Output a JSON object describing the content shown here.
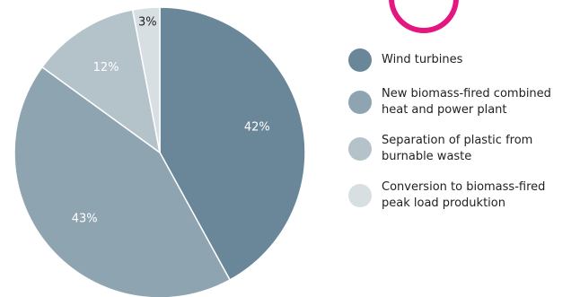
{
  "chart_data": {
    "type": "pie",
    "title": "",
    "slices": [
      {
        "label": "Wind turbines",
        "value": 42,
        "value_label": "42%",
        "color": "#6a8799",
        "label_color": "#ffffff"
      },
      {
        "label": "New biomass-fired combined\nheat and power plant",
        "value": 43,
        "value_label": "43%",
        "color": "#8ea4b0",
        "label_color": "#ffffff"
      },
      {
        "label": "Separation of plastic from\nburnable waste",
        "value": 12,
        "value_label": "12%",
        "color": "#b4c2ca",
        "label_color": "#ffffff"
      },
      {
        "label": "Conversion to biomass-fired\npeak load produktion",
        "value": 3,
        "value_label": "3%",
        "color": "#d8dfe3",
        "label_color": "#222222"
      }
    ],
    "start_angle_deg": 0,
    "direction": "clockwise",
    "legend_position": "right"
  },
  "decoration": {
    "accent_color": "#e3177f"
  }
}
